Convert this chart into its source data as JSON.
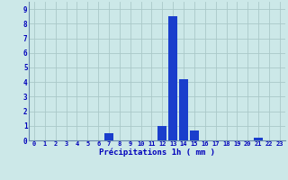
{
  "hours": [
    0,
    1,
    2,
    3,
    4,
    5,
    6,
    7,
    8,
    9,
    10,
    11,
    12,
    13,
    14,
    15,
    16,
    17,
    18,
    19,
    20,
    21,
    22,
    23
  ],
  "values": [
    0,
    0,
    0,
    0,
    0,
    0,
    0,
    0.5,
    0,
    0,
    0,
    0,
    1.0,
    8.5,
    4.2,
    0.7,
    0,
    0,
    0,
    0,
    0,
    0.2,
    0,
    0
  ],
  "bar_color": "#1a3ecc",
  "background_color": "#cce8e8",
  "grid_color": "#aac8c8",
  "xlabel": "Précipitations 1h ( mm )",
  "xlabel_color": "#0000bb",
  "tick_color": "#0000bb",
  "axis_color": "#6688aa",
  "ylim": [
    0,
    9.5
  ],
  "yticks": [
    0,
    1,
    2,
    3,
    4,
    5,
    6,
    7,
    8,
    9
  ],
  "xlim": [
    -0.5,
    23.5
  ],
  "tick_fontsize": 5.0,
  "ytick_fontsize": 5.5,
  "xlabel_fontsize": 6.5
}
